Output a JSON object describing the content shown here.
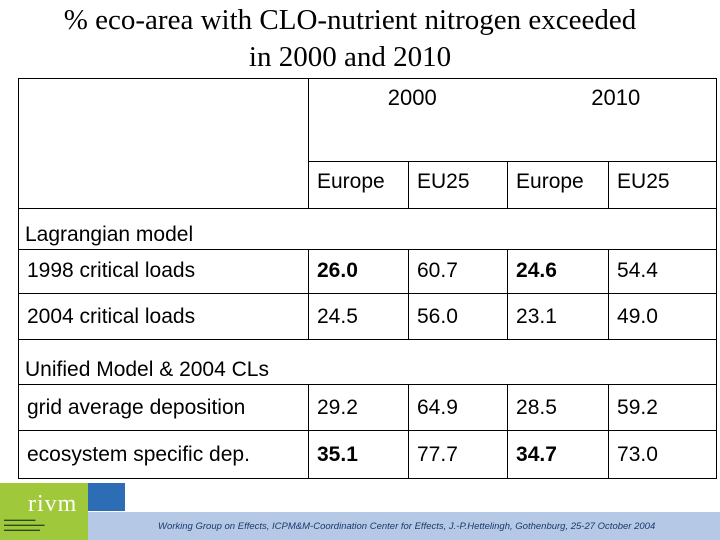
{
  "title_line1": "% eco-area with CLO-nutrient nitrogen exceeded",
  "title_line2": "in 2000 and 2010",
  "table": {
    "years": [
      "2000",
      "2010"
    ],
    "columns": [
      "Europe",
      "EU25",
      "Europe",
      "EU25"
    ],
    "sections": [
      {
        "label": "Lagrangian model",
        "rows": [
          {
            "label": "1998 critical loads",
            "values": [
              "26.0",
              "60.7",
              "24.6",
              "54.4"
            ],
            "bold": [
              true,
              false,
              true,
              false
            ]
          },
          {
            "label": "2004 critical loads",
            "values": [
              "24.5",
              "56.0",
              "23.1",
              "49.0"
            ],
            "bold": [
              false,
              false,
              false,
              false
            ]
          }
        ]
      },
      {
        "label": "Unified Model & 2004 CLs",
        "rows": [
          {
            "label": "grid average deposition",
            "values": [
              "29.2",
              "64.9",
              "28.5",
              "59.2"
            ],
            "bold": [
              false,
              false,
              false,
              false
            ]
          },
          {
            "label": "ecosystem specific dep.",
            "values": [
              "35.1",
              "77.7",
              "34.7",
              "73.0"
            ],
            "bold": [
              true,
              false,
              true,
              false
            ]
          }
        ]
      }
    ]
  },
  "footer": "Working Group on Effects, ICPM&M-Coordination Center for Effects, J.-P.Hettelingh, Gothenburg, 25-27 October 2004",
  "logo": {
    "word": "rivm"
  },
  "colors": {
    "footer_bar": "#b5c9e6",
    "logo_green": "#9fc83a",
    "logo_blue": "#2d6db5"
  }
}
